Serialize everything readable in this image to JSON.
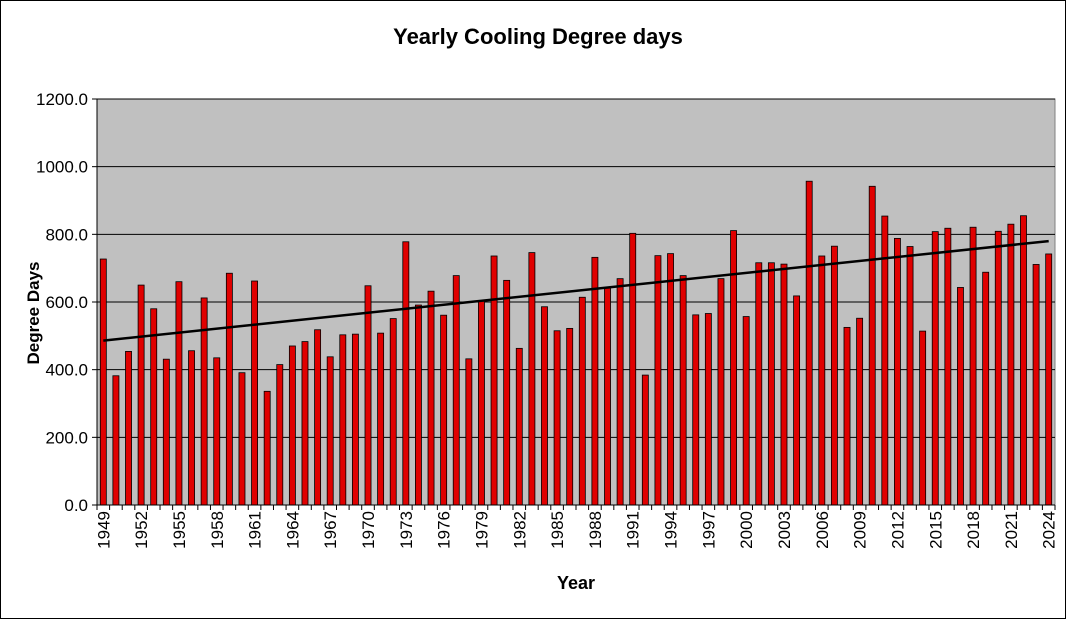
{
  "chart_data": {
    "type": "bar",
    "title": "Yearly Cooling Degree days",
    "xlabel": "Year",
    "ylabel": "Degree Days",
    "ylim": [
      0,
      1200
    ],
    "yticks": [
      "0.0",
      "200.0",
      "400.0",
      "600.0",
      "800.0",
      "1000.0",
      "1200.0"
    ],
    "grid": true,
    "years": [
      1949,
      1950,
      1951,
      1952,
      1953,
      1954,
      1955,
      1956,
      1957,
      1958,
      1959,
      1960,
      1961,
      1962,
      1963,
      1964,
      1965,
      1966,
      1967,
      1968,
      1969,
      1970,
      1971,
      1972,
      1973,
      1974,
      1975,
      1976,
      1977,
      1978,
      1979,
      1980,
      1981,
      1982,
      1983,
      1984,
      1985,
      1986,
      1987,
      1988,
      1989,
      1990,
      1991,
      1992,
      1993,
      1994,
      1995,
      1996,
      1997,
      1998,
      1999,
      2000,
      2001,
      2002,
      2003,
      2004,
      2005,
      2006,
      2007,
      2008,
      2009,
      2010,
      2011,
      2012,
      2013,
      2014,
      2015,
      2016,
      2017,
      2018,
      2019,
      2020,
      2021,
      2022,
      2023,
      2024
    ],
    "xtick_labels": [
      "1949",
      "1952",
      "1955",
      "1958",
      "1961",
      "1964",
      "1967",
      "1970",
      "1973",
      "1976",
      "1979",
      "1982",
      "1985",
      "1988",
      "1991",
      "1994",
      "1997",
      "2000",
      "2003",
      "2006",
      "2009",
      "2012",
      "2015",
      "2018",
      "2021",
      "2024"
    ],
    "values": [
      727,
      382,
      454,
      650,
      580,
      431,
      660,
      456,
      612,
      435,
      685,
      391,
      662,
      336,
      415,
      470,
      483,
      518,
      438,
      503,
      505,
      648,
      508,
      551,
      778,
      591,
      632,
      561,
      678,
      432,
      603,
      736,
      664,
      463,
      746,
      586,
      515,
      522,
      614,
      732,
      641,
      669,
      803,
      384,
      737,
      743,
      678,
      562,
      566,
      669,
      811,
      557,
      716,
      716,
      712,
      618,
      957,
      736,
      765,
      525,
      552,
      942,
      854,
      788,
      764,
      514,
      808,
      818,
      643,
      821,
      688,
      809,
      830,
      855,
      711,
      742
    ],
    "trendline": {
      "type": "linear",
      "start": 486,
      "end": 780
    },
    "colors": {
      "bar": "#e00000",
      "plot_bg": "#c0c0c0",
      "trend": "#000000"
    }
  }
}
